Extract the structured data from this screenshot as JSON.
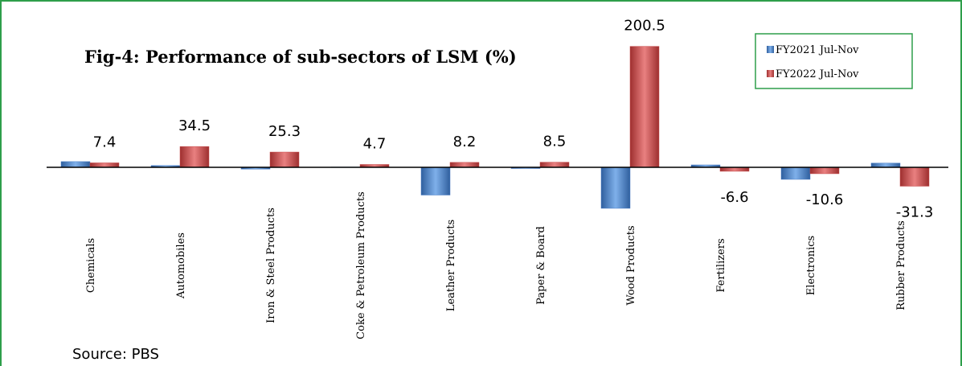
{
  "chart_data": {
    "type": "bar",
    "title": "Fig-4: Performance of sub-sectors of LSM (%)",
    "source": "Source: PBS",
    "categories": [
      "Chemicals",
      "Automobiles",
      "Iron & Steel Products",
      "Coke & Petroleum Products",
      "Leather Products",
      "Paper & Board",
      "Wood Products",
      "Fertilizers",
      "Electronics",
      "Rubber Products"
    ],
    "series": [
      {
        "name": "FY2021 Jul-Nov",
        "color": "#4a7fc8",
        "values": [
          9.5,
          3,
          -3,
          0.5,
          -46,
          -2,
          -68,
          4,
          -20,
          7
        ]
      },
      {
        "name": "FY2022 Jul-Nov",
        "color": "#c84a4a",
        "values": [
          7.4,
          34.5,
          25.3,
          4.7,
          8.2,
          8.5,
          200.5,
          -6.6,
          -10.6,
          -31.3
        ],
        "labels": true
      }
    ],
    "ylim": [
      -70,
      210
    ],
    "legend": "upper right"
  }
}
